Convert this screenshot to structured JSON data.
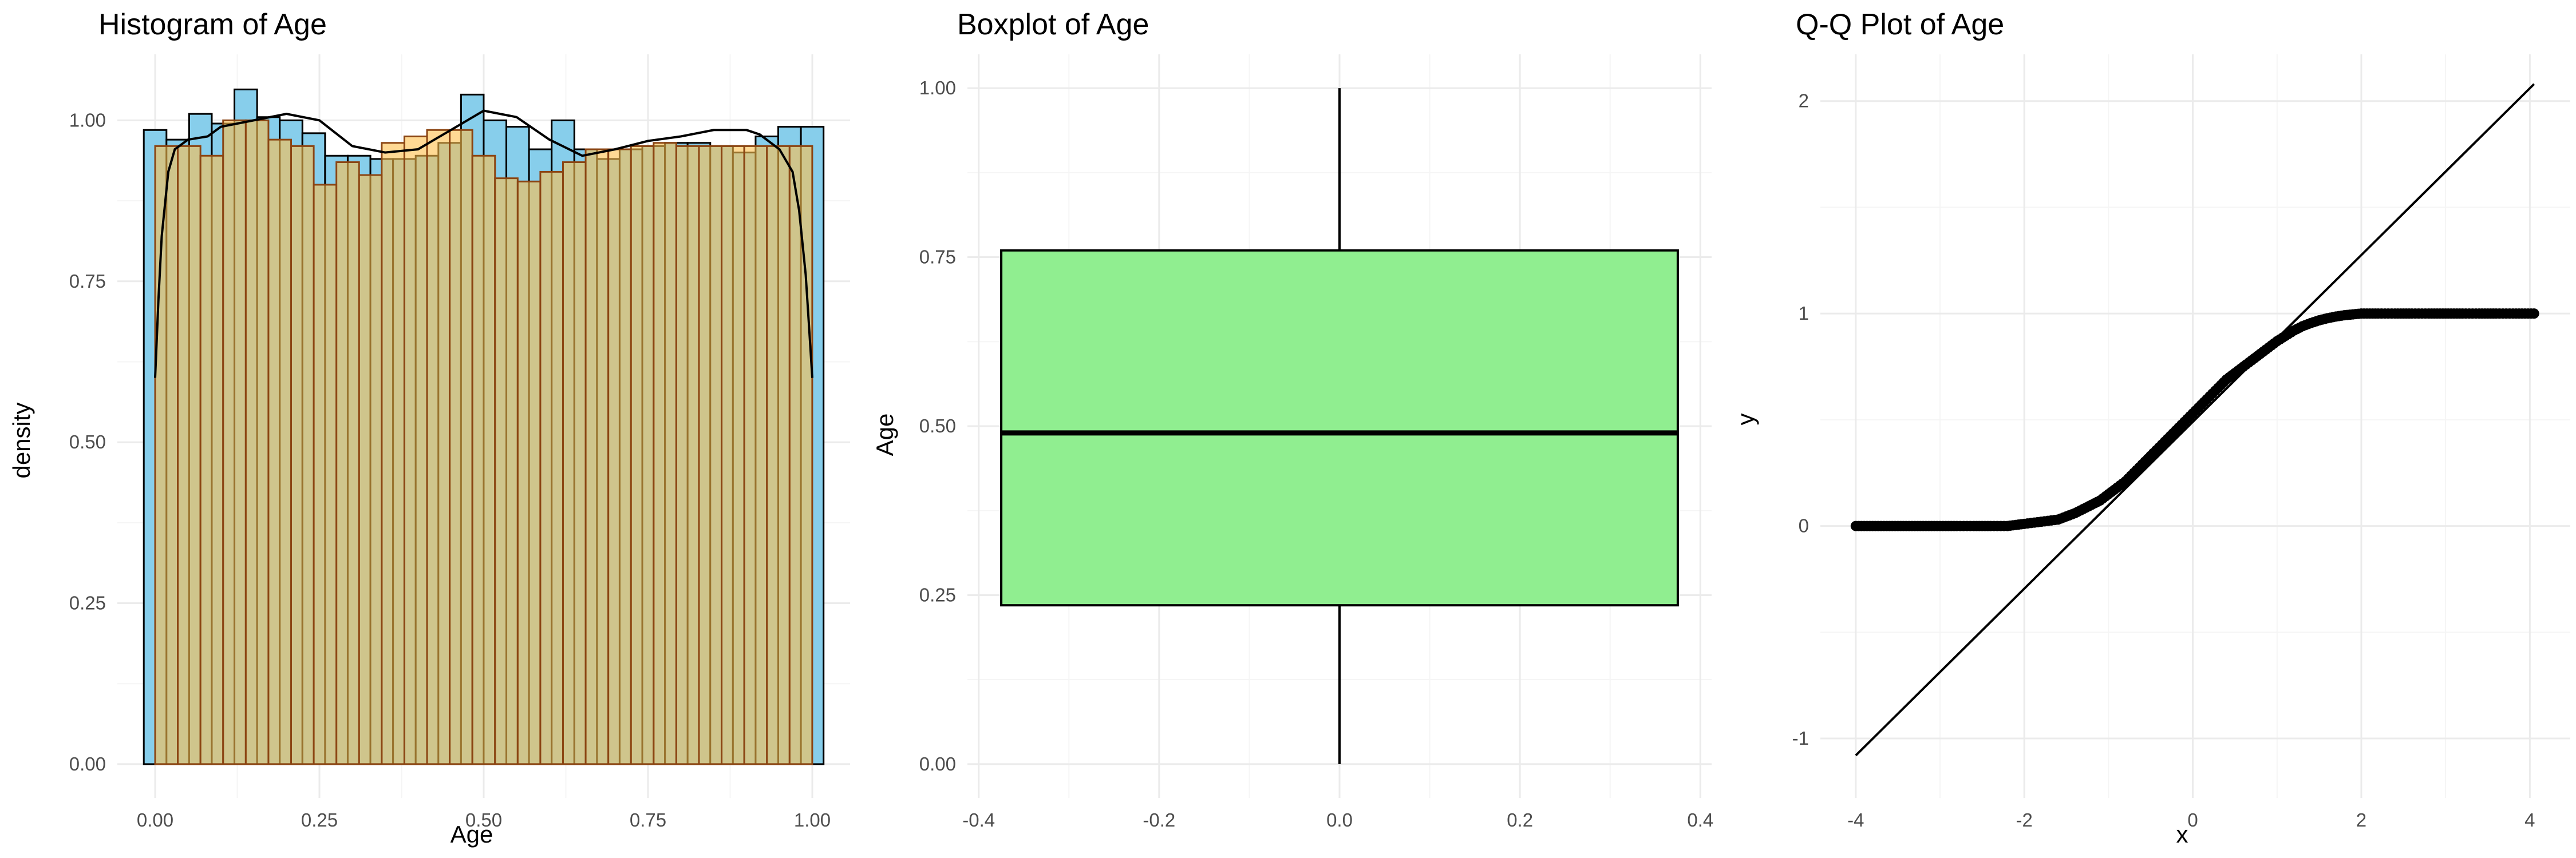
{
  "colors": {
    "histogram_fill": "#87CEEB",
    "histogram_overlay_fill": "#FFC04D",
    "histogram_overlay_stroke": "#8B4513",
    "density_line": "#000000",
    "boxplot_fill": "#90EE90",
    "grid_major": "#EBEBEB",
    "grid_minor": "#F5F5F5",
    "points": "#000000"
  },
  "chart_data": [
    {
      "type": "bar",
      "subtype": "histogram-with-density",
      "title": "Histogram of Age",
      "xlabel": "Age",
      "ylabel": "density",
      "xlim": [
        -0.0575,
        1.0575
      ],
      "ylim": [
        -0.0525,
        1.1025
      ],
      "x_ticks": [
        0,
        0.25,
        0.5,
        0.75,
        1
      ],
      "x_tick_labels": [
        "0.00",
        "0.25",
        "0.50",
        "0.75",
        "1.00"
      ],
      "y_ticks": [
        0,
        0.25,
        0.5,
        0.75,
        1
      ],
      "y_tick_labels": [
        "0.00",
        "0.25",
        "0.50",
        "0.75",
        "1.00"
      ],
      "grid": true,
      "series": [
        {
          "bin_width": 0.03448,
          "bin_start": -0.01724,
          "values": [
            0.985,
            0.97,
            1.01,
            0.995,
            1.048,
            1.005,
            1.0,
            0.98,
            0.945,
            0.945,
            0.94,
            0.94,
            0.945,
            0.965,
            1.04,
            1.0,
            0.99,
            0.955,
            1.0,
            0.955,
            0.94,
            0.955,
            0.96,
            0.965,
            0.965,
            0.96,
            0.95,
            0.975,
            0.99,
            0.99
          ]
        },
        {
          "bin_width": 0.03448,
          "bin_start": 0,
          "values": [
            0.96,
            0.96,
            0.945,
            1.0,
            1.0,
            0.97,
            0.96,
            0.9,
            0.935,
            0.915,
            0.965,
            0.975,
            0.985,
            0.985,
            0.945,
            0.91,
            0.905,
            0.92,
            0.935,
            0.955,
            0.955,
            0.96,
            0.965,
            0.96,
            0.96,
            0.96,
            0.96,
            0.96,
            0.96
          ]
        },
        {
          "x": [
            0,
            0.005,
            0.01,
            0.02,
            0.03,
            0.05,
            0.08,
            0.1,
            0.15,
            0.2,
            0.25,
            0.3,
            0.35,
            0.4,
            0.45,
            0.5,
            0.55,
            0.6,
            0.65,
            0.7,
            0.75,
            0.8,
            0.85,
            0.9,
            0.92,
            0.95,
            0.97,
            0.98,
            0.99,
            0.995,
            1.0
          ],
          "values": [
            0.6,
            0.72,
            0.82,
            0.92,
            0.955,
            0.97,
            0.975,
            0.99,
            1.0,
            1.01,
            1.0,
            0.96,
            0.95,
            0.955,
            0.985,
            1.015,
            1.005,
            0.97,
            0.945,
            0.955,
            0.968,
            0.975,
            0.985,
            0.985,
            0.978,
            0.955,
            0.92,
            0.86,
            0.76,
            0.68,
            0.6
          ]
        }
      ]
    },
    {
      "type": "boxplot",
      "title": "Boxplot of Age",
      "xlabel": "",
      "ylabel": "Age",
      "xlim": [
        -0.4125,
        0.4125
      ],
      "ylim": [
        -0.05,
        1.05
      ],
      "x_ticks": [
        -0.4,
        -0.2,
        0,
        0.2,
        0.4
      ],
      "x_tick_labels": [
        "-0.4",
        "-0.2",
        "0.0",
        "0.2",
        "0.4"
      ],
      "y_ticks": [
        0,
        0.25,
        0.5,
        0.75,
        1
      ],
      "y_tick_labels": [
        "0.00",
        "0.25",
        "0.50",
        "0.75",
        "1.00"
      ],
      "grid": true,
      "box": {
        "x_center": 0,
        "half_width": 0.375,
        "min": 0,
        "q1": 0.235,
        "median": 0.49,
        "q3": 0.76,
        "max": 1.0
      }
    },
    {
      "type": "scatter",
      "subtype": "qq-plot",
      "title": "Q-Q Plot of Age",
      "xlabel": "x",
      "ylabel": "y",
      "xlim": [
        -4.42,
        4.48
      ],
      "ylim": [
        -1.28,
        2.22
      ],
      "x_ticks": [
        -4,
        -2,
        0,
        2,
        4
      ],
      "x_tick_labels": [
        "-4",
        "-2",
        "0",
        "2",
        "4"
      ],
      "y_ticks": [
        -1,
        0,
        1,
        2
      ],
      "y_tick_labels": [
        "-1",
        "0",
        "1",
        "2"
      ],
      "grid": true,
      "reference_line": {
        "x": [
          -4.0,
          4.05
        ],
        "y": [
          -1.08,
          2.08
        ]
      },
      "points": {
        "x": [
          -4.0,
          -3.8,
          -3.7,
          -3.6,
          -3.5,
          -3.4,
          -3.3,
          -3.2,
          -3.0,
          -2.8,
          -2.6,
          -2.4,
          -2.2,
          -2.0,
          -1.8,
          -1.6,
          -1.4,
          -1.3,
          -1.2,
          -1.1,
          -1.0,
          -0.9,
          -0.8,
          -0.7,
          -0.6,
          -0.5,
          -0.4,
          -0.3,
          -0.2,
          -0.1,
          0.0,
          0.1,
          0.2,
          0.3,
          0.4,
          0.5,
          0.6,
          0.7,
          0.8,
          0.9,
          1.0,
          1.1,
          1.2,
          1.3,
          1.4,
          1.5,
          1.6,
          1.7,
          1.8,
          1.9,
          2.0,
          2.2,
          2.4,
          2.6,
          2.8,
          3.0,
          3.2,
          3.4,
          3.6,
          3.8,
          4.05
        ],
        "y": [
          0.0,
          0.0,
          0.0,
          0.0,
          0.0,
          0.0,
          0.0,
          0.0,
          0.0,
          0.0,
          0.0,
          0.0,
          0.0,
          0.01,
          0.02,
          0.03,
          0.06,
          0.08,
          0.1,
          0.12,
          0.15,
          0.18,
          0.21,
          0.25,
          0.29,
          0.33,
          0.37,
          0.41,
          0.45,
          0.49,
          0.53,
          0.57,
          0.61,
          0.65,
          0.69,
          0.72,
          0.75,
          0.78,
          0.81,
          0.84,
          0.87,
          0.895,
          0.92,
          0.94,
          0.955,
          0.968,
          0.978,
          0.986,
          0.992,
          0.996,
          1.0,
          1.0,
          1.0,
          1.0,
          1.0,
          1.0,
          1.0,
          1.0,
          1.0,
          1.0,
          1.0
        ]
      }
    }
  ]
}
